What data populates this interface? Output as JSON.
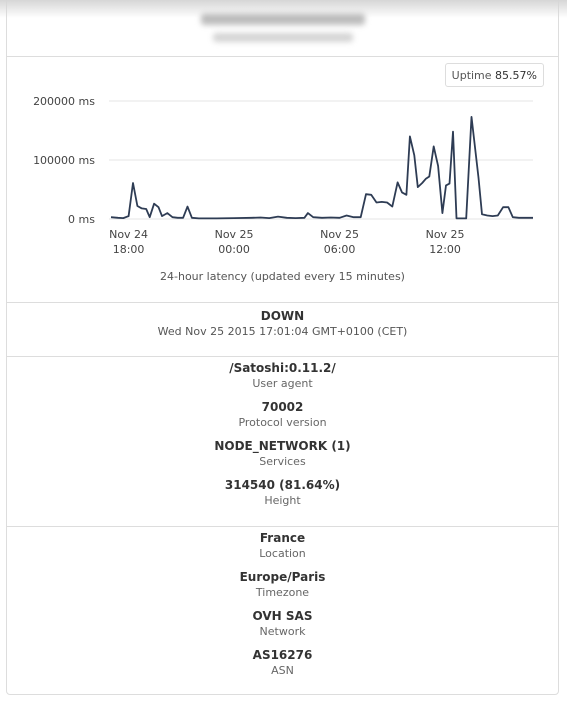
{
  "uptime": {
    "label": "Uptime",
    "value": "85.57%"
  },
  "chart_data": {
    "type": "line",
    "title": "",
    "caption": "24-hour latency (updated every 15 minutes)",
    "ylabel": "",
    "xlabel": "",
    "ylim": [
      0,
      200000
    ],
    "y_ticks": [
      {
        "value": 0,
        "label": "0 ms"
      },
      {
        "value": 100000,
        "label": "100000 ms"
      },
      {
        "value": 200000,
        "label": "200000 ms"
      }
    ],
    "x_ticks": [
      {
        "x": 0.0,
        "line1": "Nov 24",
        "line2": "18:00"
      },
      {
        "x": 6.0,
        "line1": "Nov 25",
        "line2": "00:00"
      },
      {
        "x": 12.0,
        "line1": "Nov 25",
        "line2": "06:00"
      },
      {
        "x": 18.0,
        "line1": "Nov 25",
        "line2": "12:00"
      }
    ],
    "xlim": [
      -1.0,
      23.0
    ],
    "series": [
      {
        "color": "#2e3c54",
        "points": [
          [
            -1.0,
            3000
          ],
          [
            -0.6,
            2000
          ],
          [
            -0.3,
            1500
          ],
          [
            0.0,
            5000
          ],
          [
            0.25,
            61000
          ],
          [
            0.5,
            22000
          ],
          [
            0.75,
            18000
          ],
          [
            1.0,
            17000
          ],
          [
            1.2,
            3000
          ],
          [
            1.45,
            26000
          ],
          [
            1.7,
            20000
          ],
          [
            1.9,
            5000
          ],
          [
            2.2,
            10000
          ],
          [
            2.5,
            3000
          ],
          [
            2.8,
            2000
          ],
          [
            3.1,
            2000
          ],
          [
            3.35,
            21000
          ],
          [
            3.6,
            2000
          ],
          [
            4.0,
            1000
          ],
          [
            5.0,
            1000
          ],
          [
            6.0,
            1500
          ],
          [
            7.0,
            2000
          ],
          [
            7.5,
            2500
          ],
          [
            8.0,
            1500
          ],
          [
            8.5,
            4000
          ],
          [
            9.0,
            2000
          ],
          [
            9.5,
            1500
          ],
          [
            10.0,
            2000
          ],
          [
            10.2,
            10000
          ],
          [
            10.5,
            3000
          ],
          [
            11.0,
            2000
          ],
          [
            11.5,
            2500
          ],
          [
            12.0,
            2000
          ],
          [
            12.4,
            6000
          ],
          [
            12.8,
            3000
          ],
          [
            13.2,
            3000
          ],
          [
            13.5,
            42000
          ],
          [
            13.8,
            41000
          ],
          [
            14.1,
            28000
          ],
          [
            14.4,
            29000
          ],
          [
            14.7,
            28000
          ],
          [
            15.0,
            21000
          ],
          [
            15.3,
            62000
          ],
          [
            15.55,
            45000
          ],
          [
            15.8,
            41000
          ],
          [
            16.0,
            140000
          ],
          [
            16.25,
            108000
          ],
          [
            16.45,
            54000
          ],
          [
            16.7,
            61000
          ],
          [
            16.9,
            68000
          ],
          [
            17.1,
            72000
          ],
          [
            17.35,
            123000
          ],
          [
            17.6,
            90000
          ],
          [
            17.85,
            10000
          ],
          [
            18.05,
            57000
          ],
          [
            18.25,
            60000
          ],
          [
            18.45,
            148000
          ],
          [
            18.65,
            1000
          ],
          [
            18.9,
            1000
          ],
          [
            19.2,
            1000
          ],
          [
            19.5,
            173000
          ],
          [
            19.9,
            70000
          ],
          [
            20.1,
            8000
          ],
          [
            20.4,
            6000
          ],
          [
            20.7,
            5000
          ],
          [
            21.0,
            6000
          ],
          [
            21.3,
            20000
          ],
          [
            21.6,
            20000
          ],
          [
            21.85,
            3000
          ],
          [
            22.2,
            2000
          ],
          [
            22.6,
            2000
          ],
          [
            23.0,
            2000
          ]
        ]
      }
    ]
  },
  "status": {
    "value": "DOWN",
    "timestamp": "Wed Nov 25 2015 17:01:04 GMT+0100 (CET)"
  },
  "node_info": [
    {
      "value": "/Satoshi:0.11.2/",
      "label": "User agent"
    },
    {
      "value": "70002",
      "label": "Protocol version"
    },
    {
      "value": "NODE_NETWORK (1)",
      "label": "Services"
    },
    {
      "value": "314540 (81.64%)",
      "label": "Height"
    }
  ],
  "geo_info": [
    {
      "value": "France",
      "label": "Location"
    },
    {
      "value": "Europe/Paris",
      "label": "Timezone"
    },
    {
      "value": "OVH SAS",
      "label": "Network"
    },
    {
      "value": "AS16276",
      "label": "ASN"
    }
  ]
}
